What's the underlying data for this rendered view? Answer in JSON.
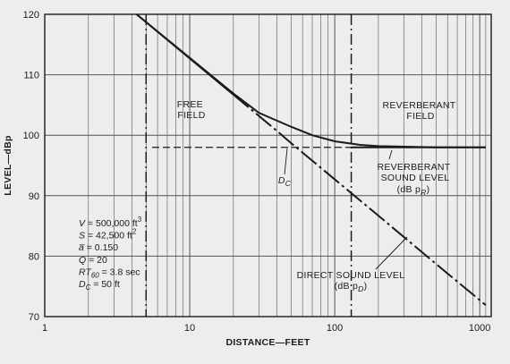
{
  "chart_data": {
    "type": "line",
    "xscale": "log",
    "xlim": [
      1,
      1200
    ],
    "ylim": [
      70,
      120
    ],
    "xlabel": "DISTANCE—FEET",
    "ylabel": "LEVEL—dBp",
    "x_ticks": [
      {
        "value": 1,
        "label": "1"
      },
      {
        "value": 10,
        "label": "10"
      },
      {
        "value": 100,
        "label": "100"
      },
      {
        "value": 1000,
        "label": "1000"
      }
    ],
    "y_ticks": [
      {
        "value": 70,
        "label": "70"
      },
      {
        "value": 80,
        "label": "80"
      },
      {
        "value": 90,
        "label": "90"
      },
      {
        "value": 100,
        "label": "100"
      },
      {
        "value": 110,
        "label": "110"
      },
      {
        "value": 120,
        "label": "120"
      }
    ],
    "grid": true,
    "reference_lines": {
      "vertical_dashed_x": [
        5,
        130
      ],
      "reverberant_level_y": 98
    },
    "series": [
      {
        "key": "direct",
        "label": "DIRECT SOUND LEVEL",
        "sublabel": "(dB p",
        "sub_subscript": "D",
        "sub_close": ")",
        "style": "solid-then-dashed",
        "solid_until_x": 20,
        "color": "#1b1b1b",
        "x": [
          4.3,
          10,
          20,
          40,
          50,
          100,
          200,
          500,
          1100
        ],
        "y": [
          120,
          112.7,
          106.7,
          100.7,
          98.7,
          92.7,
          86.7,
          78.7,
          71.9
        ]
      },
      {
        "key": "total",
        "label": "",
        "style": "solid",
        "color": "#1b1b1b",
        "x": [
          4.3,
          10,
          20,
          30,
          50,
          70,
          100,
          150,
          200,
          500,
          1100
        ],
        "y": [
          120,
          112.8,
          106.9,
          103.7,
          101.4,
          100.0,
          99.0,
          98.4,
          98.2,
          98.0,
          98.0
        ]
      },
      {
        "key": "reverberant",
        "label": "REVERBERANT",
        "label_line2": "SOUND LEVEL",
        "sublabel": "(dB p",
        "sub_subscript": "R",
        "sub_close": ")",
        "style": "dashed-then-solid",
        "solid_from_x": 130,
        "color": "#1b1b1b",
        "x": [
          5.5,
          130,
          1100
        ],
        "y": [
          98,
          98,
          98
        ]
      }
    ],
    "annotations": {
      "free_field": [
        "FREE",
        "FIELD"
      ],
      "reverberant_field": [
        "REVERBERANT",
        "FIELD"
      ],
      "dc_label": "D",
      "dc_sub": "C"
    },
    "parameters": [
      {
        "sym": "V",
        "sub": "",
        "rest": " = 500,000 ft",
        "sup": "3"
      },
      {
        "sym": "S",
        "sub": "",
        "rest": " = 42,500 ft",
        "sup": "2"
      },
      {
        "sym": "a̅",
        "sub": "",
        "rest": " = 0.150",
        "sup": ""
      },
      {
        "sym": "Q",
        "sub": "",
        "rest": " = 20",
        "sup": ""
      },
      {
        "sym": "RT",
        "sub": "60",
        "rest": " = 3.8 sec",
        "sup": ""
      },
      {
        "sym": "D",
        "sub": "C",
        "rest": " = 50 ft",
        "sup": ""
      }
    ]
  }
}
